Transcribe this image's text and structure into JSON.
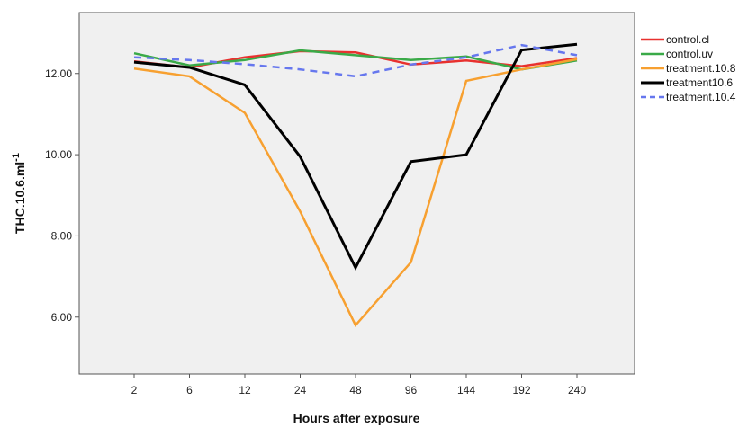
{
  "chart_data": {
    "type": "line",
    "categories": [
      "2",
      "6",
      "12",
      "24",
      "48",
      "96",
      "144",
      "192",
      "240"
    ],
    "xlabel": "Hours after exposure",
    "ylabel": "THC.10.6.ml",
    "ylabel_superscript": "-1",
    "ylim": [
      4.6,
      13.5
    ],
    "yticks": [
      "6.00",
      "8.00",
      "10.00",
      "12.00"
    ],
    "ytick_values": [
      6,
      8,
      10,
      12
    ],
    "grid": false,
    "legend_position": "right",
    "series": [
      {
        "name": "control.cl",
        "color": "#e8312f",
        "dash": "solid",
        "values": [
          12.3,
          12.15,
          12.4,
          12.55,
          12.52,
          12.22,
          12.32,
          12.18,
          12.38
        ]
      },
      {
        "name": "control.uv",
        "color": "#3aaa48",
        "dash": "solid",
        "values": [
          12.5,
          12.2,
          12.33,
          12.57,
          12.45,
          12.33,
          12.42,
          12.1,
          12.32
        ]
      },
      {
        "name": "treatment.10.8",
        "color": "#f7a030",
        "dash": "solid",
        "values": [
          12.12,
          11.93,
          11.03,
          8.6,
          5.8,
          7.35,
          11.82,
          12.1,
          12.35
        ]
      },
      {
        "name": "treatment10.6",
        "color": "#000000",
        "dash": "solid",
        "values": [
          12.28,
          12.15,
          11.72,
          9.95,
          7.22,
          9.83,
          10.0,
          12.58,
          12.72
        ]
      },
      {
        "name": "treatment.10.4",
        "color": "#6677ee",
        "dash": "dashed",
        "values": [
          12.4,
          12.33,
          12.23,
          12.1,
          11.93,
          12.22,
          12.4,
          12.7,
          12.45
        ]
      }
    ]
  }
}
